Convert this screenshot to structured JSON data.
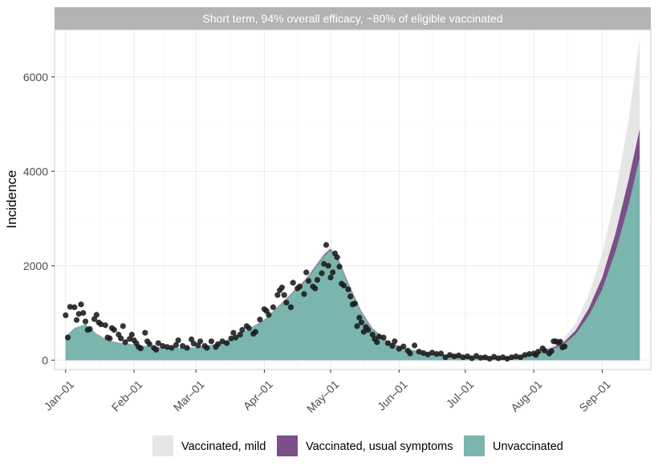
{
  "chart_data": {
    "type": "area",
    "facet_title": "Short term, 94% overall efficacy, ~80% of eligible vaccinated",
    "ylabel": "Incidence",
    "xlabel": "",
    "x_range": [
      "2020-12-27",
      "2021-09-23"
    ],
    "ylim": [
      -200,
      7000
    ],
    "y_ticks": [
      0,
      2000,
      4000,
      6000
    ],
    "x_ticks": [
      {
        "date": "2021-01-01",
        "label": "Jan–01"
      },
      {
        "date": "2021-02-01",
        "label": "Feb–01"
      },
      {
        "date": "2021-03-01",
        "label": "Mar–01"
      },
      {
        "date": "2021-04-01",
        "label": "Apr–01"
      },
      {
        "date": "2021-05-01",
        "label": "May–01"
      },
      {
        "date": "2021-06-01",
        "label": "Jun–01"
      },
      {
        "date": "2021-07-01",
        "label": "Jul–01"
      },
      {
        "date": "2021-08-01",
        "label": "Aug–01"
      },
      {
        "date": "2021-09-01",
        "label": "Sep–01"
      }
    ],
    "grid": true,
    "legend_position": "bottom",
    "series": [
      {
        "name": "Unvaccinated",
        "color": "#7ab5ae",
        "points": [
          [
            "2021-01-01",
            500
          ],
          [
            "2021-01-05",
            680
          ],
          [
            "2021-01-10",
            760
          ],
          [
            "2021-01-15",
            560
          ],
          [
            "2021-01-20",
            420
          ],
          [
            "2021-01-25",
            370
          ],
          [
            "2021-02-01",
            330
          ],
          [
            "2021-02-08",
            290
          ],
          [
            "2021-02-15",
            270
          ],
          [
            "2021-02-22",
            260
          ],
          [
            "2021-03-01",
            270
          ],
          [
            "2021-03-08",
            320
          ],
          [
            "2021-03-15",
            420
          ],
          [
            "2021-03-22",
            580
          ],
          [
            "2021-04-01",
            840
          ],
          [
            "2021-04-10",
            1250
          ],
          [
            "2021-04-20",
            1700
          ],
          [
            "2021-04-28",
            2200
          ],
          [
            "2021-05-01",
            2330
          ],
          [
            "2021-05-05",
            2050
          ],
          [
            "2021-05-10",
            1500
          ],
          [
            "2021-05-15",
            1000
          ],
          [
            "2021-05-20",
            650
          ],
          [
            "2021-05-27",
            380
          ],
          [
            "2021-06-05",
            220
          ],
          [
            "2021-06-15",
            140
          ],
          [
            "2021-06-25",
            95
          ],
          [
            "2021-07-05",
            60
          ],
          [
            "2021-07-15",
            50
          ],
          [
            "2021-07-25",
            70
          ],
          [
            "2021-08-01",
            120
          ],
          [
            "2021-08-07",
            200
          ],
          [
            "2021-08-14",
            310
          ],
          [
            "2021-08-20",
            550
          ],
          [
            "2021-08-26",
            950
          ],
          [
            "2021-09-01",
            1500
          ],
          [
            "2021-09-07",
            2300
          ],
          [
            "2021-09-13",
            3300
          ],
          [
            "2021-09-18",
            4300
          ]
        ]
      },
      {
        "name": "Vaccinated, usual symptoms",
        "color": "#7b5088",
        "points": [
          [
            "2021-01-01",
            500
          ],
          [
            "2021-01-05",
            680
          ],
          [
            "2021-01-10",
            760
          ],
          [
            "2021-01-15",
            560
          ],
          [
            "2021-01-20",
            420
          ],
          [
            "2021-01-25",
            370
          ],
          [
            "2021-02-01",
            330
          ],
          [
            "2021-02-08",
            290
          ],
          [
            "2021-02-15",
            270
          ],
          [
            "2021-02-22",
            260
          ],
          [
            "2021-03-01",
            270
          ],
          [
            "2021-03-08",
            320
          ],
          [
            "2021-03-15",
            420
          ],
          [
            "2021-03-22",
            580
          ],
          [
            "2021-04-01",
            850
          ],
          [
            "2021-04-10",
            1260
          ],
          [
            "2021-04-20",
            1720
          ],
          [
            "2021-04-28",
            2230
          ],
          [
            "2021-05-01",
            2360
          ],
          [
            "2021-05-05",
            2080
          ],
          [
            "2021-05-10",
            1520
          ],
          [
            "2021-05-15",
            1020
          ],
          [
            "2021-05-20",
            665
          ],
          [
            "2021-05-27",
            390
          ],
          [
            "2021-06-05",
            228
          ],
          [
            "2021-06-15",
            146
          ],
          [
            "2021-06-25",
            100
          ],
          [
            "2021-07-05",
            64
          ],
          [
            "2021-07-15",
            54
          ],
          [
            "2021-07-25",
            76
          ],
          [
            "2021-08-01",
            130
          ],
          [
            "2021-08-07",
            220
          ],
          [
            "2021-08-14",
            350
          ],
          [
            "2021-08-20",
            630
          ],
          [
            "2021-08-26",
            1100
          ],
          [
            "2021-09-01",
            1750
          ],
          [
            "2021-09-07",
            2680
          ],
          [
            "2021-09-13",
            3830
          ],
          [
            "2021-09-18",
            4900
          ]
        ]
      },
      {
        "name": "Vaccinated, mild",
        "color": "#e6e6e6",
        "points": [
          [
            "2021-01-01",
            500
          ],
          [
            "2021-01-05",
            680
          ],
          [
            "2021-01-10",
            760
          ],
          [
            "2021-01-15",
            560
          ],
          [
            "2021-01-20",
            420
          ],
          [
            "2021-01-25",
            370
          ],
          [
            "2021-02-01",
            330
          ],
          [
            "2021-02-08",
            290
          ],
          [
            "2021-02-15",
            270
          ],
          [
            "2021-02-22",
            260
          ],
          [
            "2021-03-01",
            270
          ],
          [
            "2021-03-08",
            320
          ],
          [
            "2021-03-15",
            420
          ],
          [
            "2021-03-22",
            580
          ],
          [
            "2021-04-01",
            860
          ],
          [
            "2021-04-10",
            1290
          ],
          [
            "2021-04-20",
            1760
          ],
          [
            "2021-04-28",
            2290
          ],
          [
            "2021-05-01",
            2420
          ],
          [
            "2021-05-05",
            2140
          ],
          [
            "2021-05-10",
            1570
          ],
          [
            "2021-05-15",
            1060
          ],
          [
            "2021-05-20",
            695
          ],
          [
            "2021-05-27",
            410
          ],
          [
            "2021-06-05",
            242
          ],
          [
            "2021-06-15",
            156
          ],
          [
            "2021-06-25",
            108
          ],
          [
            "2021-07-05",
            70
          ],
          [
            "2021-07-15",
            60
          ],
          [
            "2021-07-25",
            85
          ],
          [
            "2021-08-01",
            150
          ],
          [
            "2021-08-07",
            255
          ],
          [
            "2021-08-14",
            420
          ],
          [
            "2021-08-20",
            780
          ],
          [
            "2021-08-26",
            1400
          ],
          [
            "2021-09-01",
            2250
          ],
          [
            "2021-09-07",
            3500
          ],
          [
            "2021-09-13",
            5100
          ],
          [
            "2021-09-18",
            6800
          ]
        ]
      }
    ],
    "observed": [
      [
        "2021-01-01",
        950
      ],
      [
        "2021-01-02",
        480
      ],
      [
        "2021-01-03",
        1130
      ],
      [
        "2021-01-05",
        1120
      ],
      [
        "2021-01-06",
        850
      ],
      [
        "2021-01-07",
        980
      ],
      [
        "2021-01-08",
        1180
      ],
      [
        "2021-01-09",
        1000
      ],
      [
        "2021-01-10",
        820
      ],
      [
        "2021-01-11",
        640
      ],
      [
        "2021-01-12",
        660
      ],
      [
        "2021-01-14",
        870
      ],
      [
        "2021-01-15",
        960
      ],
      [
        "2021-01-16",
        800
      ],
      [
        "2021-01-17",
        760
      ],
      [
        "2021-01-19",
        740
      ],
      [
        "2021-01-20",
        480
      ],
      [
        "2021-01-21",
        460
      ],
      [
        "2021-01-22",
        680
      ],
      [
        "2021-01-23",
        640
      ],
      [
        "2021-01-25",
        540
      ],
      [
        "2021-01-26",
        460
      ],
      [
        "2021-01-27",
        720
      ],
      [
        "2021-01-28",
        380
      ],
      [
        "2021-01-30",
        450
      ],
      [
        "2021-01-31",
        540
      ],
      [
        "2021-02-01",
        420
      ],
      [
        "2021-02-02",
        360
      ],
      [
        "2021-02-03",
        280
      ],
      [
        "2021-02-04",
        250
      ],
      [
        "2021-02-06",
        580
      ],
      [
        "2021-02-07",
        400
      ],
      [
        "2021-02-08",
        340
      ],
      [
        "2021-02-10",
        260
      ],
      [
        "2021-02-11",
        220
      ],
      [
        "2021-02-12",
        360
      ],
      [
        "2021-02-14",
        300
      ],
      [
        "2021-02-16",
        280
      ],
      [
        "2021-02-18",
        260
      ],
      [
        "2021-02-20",
        320
      ],
      [
        "2021-02-21",
        420
      ],
      [
        "2021-02-23",
        300
      ],
      [
        "2021-02-25",
        260
      ],
      [
        "2021-02-27",
        440
      ],
      [
        "2021-02-28",
        350
      ],
      [
        "2021-03-02",
        310
      ],
      [
        "2021-03-03",
        400
      ],
      [
        "2021-03-05",
        300
      ],
      [
        "2021-03-06",
        260
      ],
      [
        "2021-03-08",
        400
      ],
      [
        "2021-03-10",
        280
      ],
      [
        "2021-03-11",
        340
      ],
      [
        "2021-03-13",
        400
      ],
      [
        "2021-03-15",
        360
      ],
      [
        "2021-03-17",
        460
      ],
      [
        "2021-03-18",
        580
      ],
      [
        "2021-03-19",
        480
      ],
      [
        "2021-03-21",
        540
      ],
      [
        "2021-03-22",
        640
      ],
      [
        "2021-03-24",
        720
      ],
      [
        "2021-03-25",
        680
      ],
      [
        "2021-03-27",
        560
      ],
      [
        "2021-03-28",
        600
      ],
      [
        "2021-03-30",
        860
      ],
      [
        "2021-04-01",
        1080
      ],
      [
        "2021-04-02",
        1040
      ],
      [
        "2021-04-03",
        960
      ],
      [
        "2021-04-05",
        1120
      ],
      [
        "2021-04-07",
        1380
      ],
      [
        "2021-04-08",
        1480
      ],
      [
        "2021-04-09",
        1540
      ],
      [
        "2021-04-10",
        1380
      ],
      [
        "2021-04-11",
        1220
      ],
      [
        "2021-04-13",
        1120
      ],
      [
        "2021-04-14",
        1640
      ],
      [
        "2021-04-16",
        1520
      ],
      [
        "2021-04-17",
        1560
      ],
      [
        "2021-04-19",
        1400
      ],
      [
        "2021-04-20",
        1860
      ],
      [
        "2021-04-21",
        1680
      ],
      [
        "2021-04-23",
        1560
      ],
      [
        "2021-04-24",
        1520
      ],
      [
        "2021-04-25",
        1700
      ],
      [
        "2021-04-27",
        1840
      ],
      [
        "2021-04-28",
        2040
      ],
      [
        "2021-04-29",
        2440
      ],
      [
        "2021-04-30",
        2000
      ],
      [
        "2021-05-01",
        1750
      ],
      [
        "2021-05-02",
        1860
      ],
      [
        "2021-05-03",
        2260
      ],
      [
        "2021-05-04",
        2180
      ],
      [
        "2021-05-05",
        1980
      ],
      [
        "2021-05-06",
        1620
      ],
      [
        "2021-05-07",
        1580
      ],
      [
        "2021-05-09",
        1500
      ],
      [
        "2021-05-10",
        1350
      ],
      [
        "2021-05-11",
        1180
      ],
      [
        "2021-05-12",
        1200
      ],
      [
        "2021-05-13",
        720
      ],
      [
        "2021-05-14",
        900
      ],
      [
        "2021-05-15",
        800
      ],
      [
        "2021-05-16",
        600
      ],
      [
        "2021-05-17",
        700
      ],
      [
        "2021-05-18",
        640
      ],
      [
        "2021-05-20",
        540
      ],
      [
        "2021-05-21",
        450
      ],
      [
        "2021-05-22",
        380
      ],
      [
        "2021-05-23",
        500
      ],
      [
        "2021-05-25",
        480
      ],
      [
        "2021-05-27",
        360
      ],
      [
        "2021-05-29",
        300
      ],
      [
        "2021-05-30",
        400
      ],
      [
        "2021-06-01",
        240
      ],
      [
        "2021-06-03",
        290
      ],
      [
        "2021-06-05",
        200
      ],
      [
        "2021-06-06",
        140
      ],
      [
        "2021-06-08",
        310
      ],
      [
        "2021-06-10",
        180
      ],
      [
        "2021-06-12",
        150
      ],
      [
        "2021-06-14",
        120
      ],
      [
        "2021-06-16",
        160
      ],
      [
        "2021-06-18",
        130
      ],
      [
        "2021-06-20",
        140
      ],
      [
        "2021-06-22",
        60
      ],
      [
        "2021-06-24",
        110
      ],
      [
        "2021-06-26",
        80
      ],
      [
        "2021-06-28",
        100
      ],
      [
        "2021-06-30",
        60
      ],
      [
        "2021-07-02",
        80
      ],
      [
        "2021-07-04",
        40
      ],
      [
        "2021-07-06",
        90
      ],
      [
        "2021-07-08",
        50
      ],
      [
        "2021-07-10",
        60
      ],
      [
        "2021-07-12",
        30
      ],
      [
        "2021-07-14",
        70
      ],
      [
        "2021-07-16",
        40
      ],
      [
        "2021-07-18",
        60
      ],
      [
        "2021-07-20",
        30
      ],
      [
        "2021-07-22",
        60
      ],
      [
        "2021-07-24",
        80
      ],
      [
        "2021-07-26",
        60
      ],
      [
        "2021-07-28",
        110
      ],
      [
        "2021-07-30",
        130
      ],
      [
        "2021-08-01",
        140
      ],
      [
        "2021-08-02",
        110
      ],
      [
        "2021-08-03",
        180
      ],
      [
        "2021-08-05",
        250
      ],
      [
        "2021-08-06",
        200
      ],
      [
        "2021-08-08",
        140
      ],
      [
        "2021-08-09",
        190
      ],
      [
        "2021-08-10",
        400
      ],
      [
        "2021-08-11",
        400
      ],
      [
        "2021-08-12",
        370
      ],
      [
        "2021-08-13",
        390
      ],
      [
        "2021-08-14",
        270
      ],
      [
        "2021-08-15",
        290
      ]
    ]
  }
}
